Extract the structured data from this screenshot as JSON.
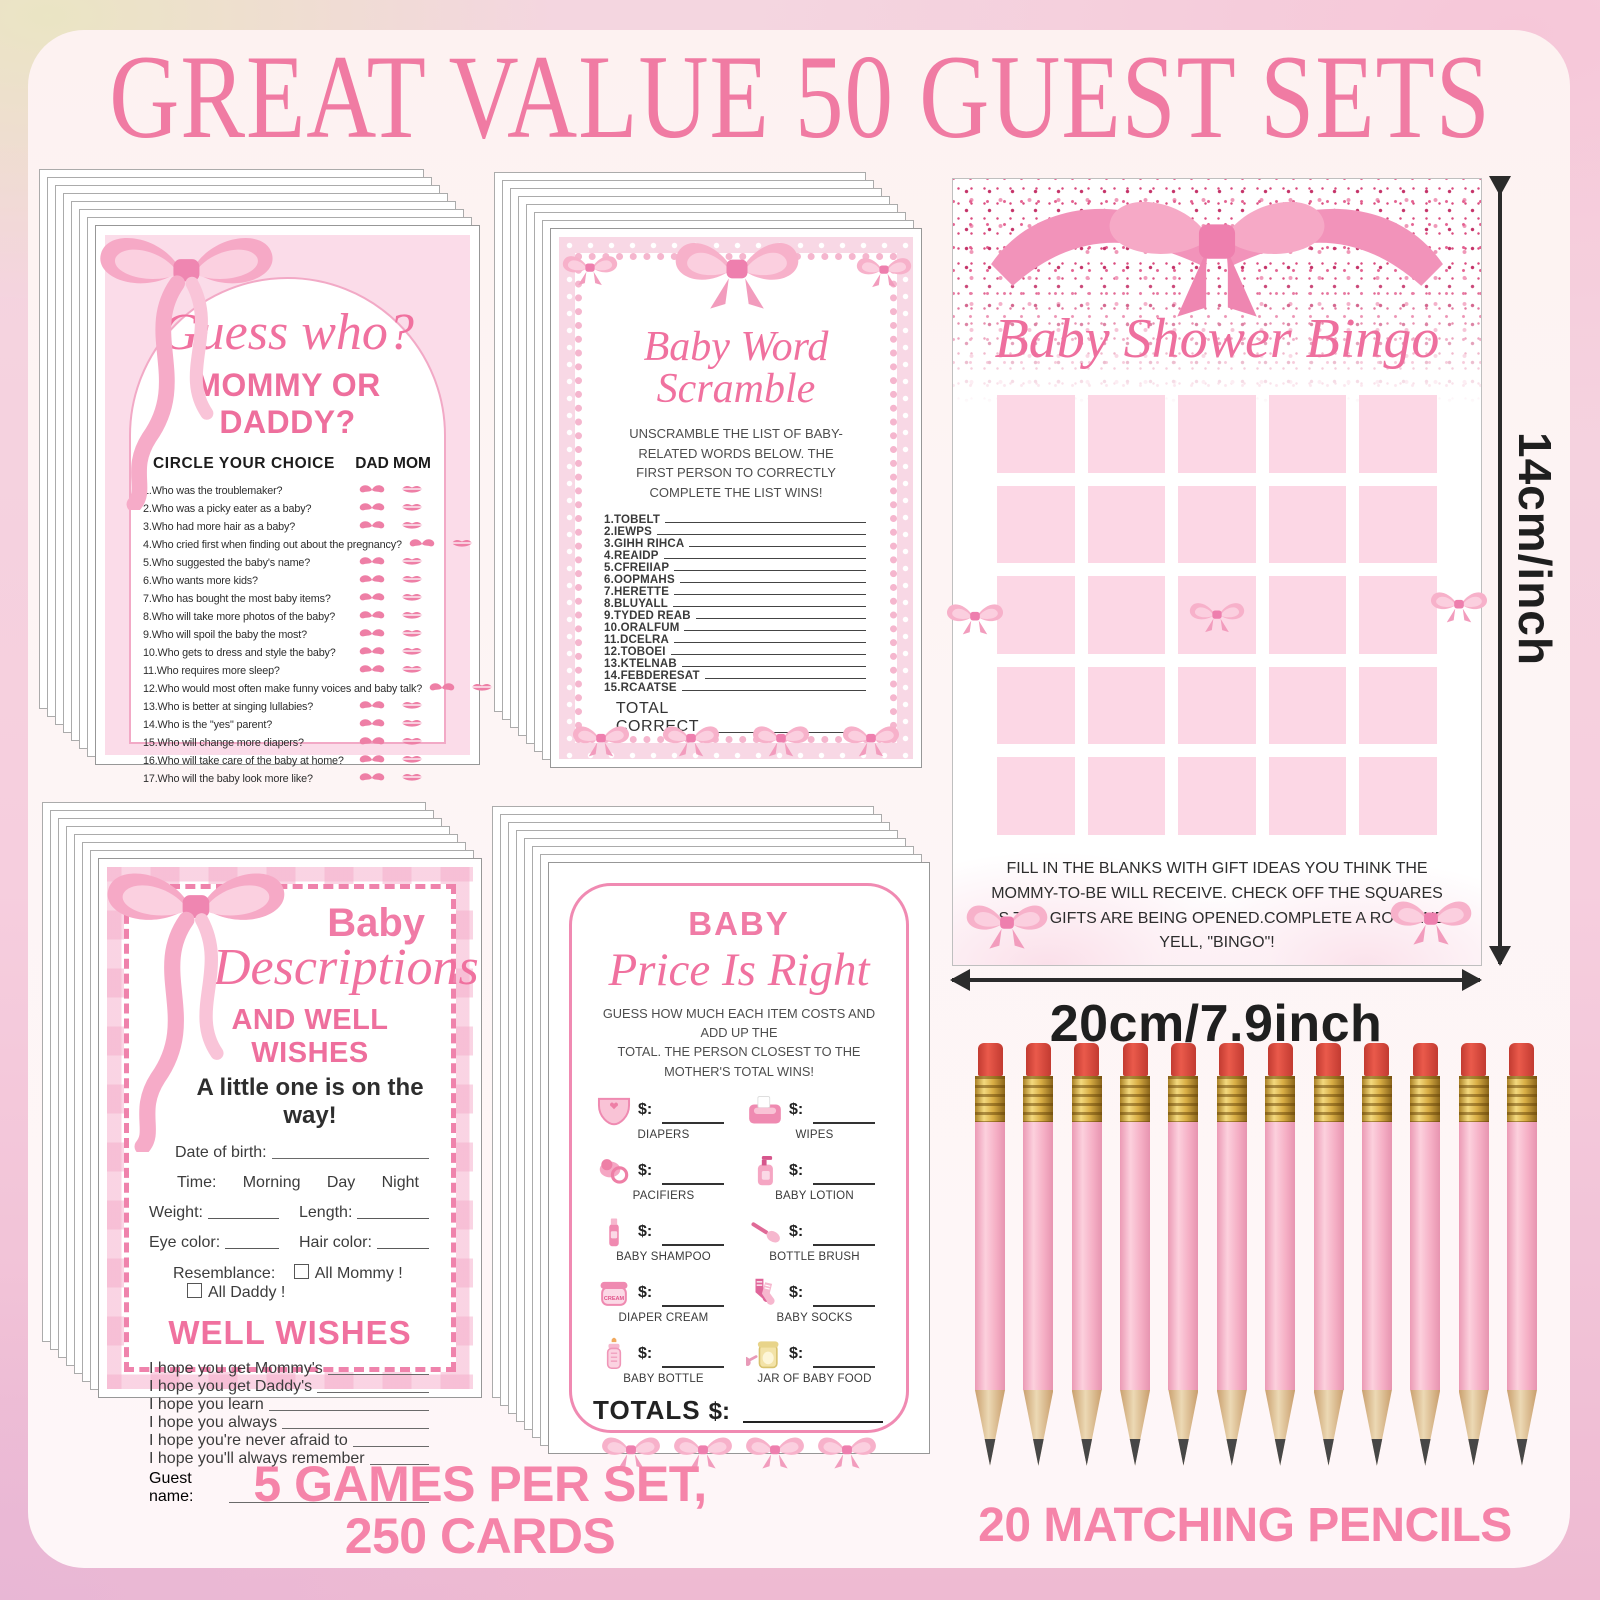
{
  "title": "GREAT VALUE 50 GUEST SETS",
  "colors": {
    "accent_pink": "#f07ba3",
    "card_pink": "#fbdce9",
    "text_dark": "#2e2e2e"
  },
  "dimensions": {
    "height_label": "14cm/inch",
    "width_label": "20cm/7.9inch"
  },
  "footer": {
    "left_line1": "5 GAMES PER SET,",
    "left_line2": "250 CARDS",
    "right": "20 MATCHING PENCILS"
  },
  "stacks": {
    "back_cards": 7
  },
  "pencils": {
    "count": 12
  },
  "guess_who": {
    "title_script": "Guess who?",
    "title_sub": "MOMMY OR DADDY?",
    "header_left": "CIRCLE YOUR CHOICE",
    "header_dad": "DAD",
    "header_mom": "MOM",
    "dad_icon": "mustache-icon",
    "mom_icon": "lips-icon",
    "questions": [
      "1.Who was the troublemaker?",
      "2.Who was a picky eater as a baby?",
      "3.Who had more hair as a baby?",
      "4.Who cried first when finding out about the pregnancy?",
      "5.Who suggested the baby's name?",
      "6.Who wants more kids?",
      "7.Who has bought the most baby items?",
      "8.Who will take more photos of the baby?",
      "9.Who will spoil the baby the most?",
      "10.Who gets to dress and style the baby?",
      "11.Who requires more sleep?",
      "12.Who would most often make funny voices and baby talk?",
      "13.Who is better at singing lullabies?",
      "14.Who is the \"yes\" parent?",
      "15.Who will change more diapers?",
      "16.Who will take care of the baby at home?",
      "17.Who will the baby look more like?"
    ]
  },
  "word_scramble": {
    "title": "Baby Word Scramble",
    "instructions_line1": "UNSCRAMBLE THE LIST OF BABY-RELATED WORDS BELOW. THE",
    "instructions_line2": "FIRST PERSON TO CORRECTLY COMPLETE THE LIST WINS!",
    "words": [
      "1.TOBELT",
      "2.IEWPS",
      "3.GIHH RIHCA",
      "4.REAIDP",
      "5.CFREIIAP",
      "6.OOPMAHS",
      "7.HERETTE",
      "8.BLUYALL",
      "9.TYDED REAB",
      "10.ORALFUM",
      "11.DCELRA",
      "12.TOBOEI",
      "13.KTELNAB",
      "14.FEBDERESAT",
      "15.RCAATSE"
    ],
    "total_label": "TOTAL CORRECT"
  },
  "bingo": {
    "title": "Baby Shower Bingo",
    "grid_rows": 5,
    "grid_cols": 5,
    "center_icon": "bow-icon",
    "instructions": "FILL IN THE BLANKS WITH GIFT IDEAS YOU THINK THE MOMMY-TO-BE WILL RECEIVE. CHECK OFF THE SQUARES AS THE GIFTS ARE BEING OPENED.COMPLETE A ROW AND YELL, \"BINGO\"!"
  },
  "descriptions": {
    "title_top": "Baby",
    "title_script": "Descriptions",
    "subtitle": "AND WELL WISHES",
    "tagline": "A little one is on the way!",
    "fields": {
      "date_label": "Date of birth:",
      "time_label": "Time:",
      "time_options": [
        "Morning",
        "Day",
        "Night"
      ],
      "weight_label": "Weight:",
      "length_label": "Length:",
      "eye_label": "Eye color:",
      "hair_label": "Hair color:",
      "resemblance_label": "Resemblance:",
      "option_mommy": "All Mommy !",
      "option_daddy": "All Daddy !"
    },
    "well_wishes_title": "WELL WISHES",
    "wishes": [
      "I hope you get Mommy's",
      "I hope you get Daddy's",
      "I hope you learn",
      "I hope you always",
      "I hope you're never afraid to",
      "I hope you'll always remember"
    ],
    "guest_label": "Guest name:"
  },
  "price_is_right": {
    "title_top": "BABY",
    "title_script": "Price Is Right",
    "instructions_line1": "GUESS HOW MUCH EACH ITEM COSTS AND ADD UP THE",
    "instructions_line2": "TOTAL. THE PERSON CLOSEST TO THE MOTHER'S TOTAL WINS!",
    "price_prefix": "$:",
    "items": [
      {
        "label": "DIAPERS",
        "icon": "diaper-icon"
      },
      {
        "label": "WIPES",
        "icon": "wipes-icon"
      },
      {
        "label": "PACIFIERS",
        "icon": "pacifier-icon"
      },
      {
        "label": "BABY LOTION",
        "icon": "lotion-icon"
      },
      {
        "label": "BABY SHAMPOO",
        "icon": "shampoo-icon"
      },
      {
        "label": "BOTTLE BRUSH",
        "icon": "bottle-brush-icon"
      },
      {
        "label": "DIAPER CREAM",
        "icon": "cream-jar-icon"
      },
      {
        "label": "BABY SOCKS",
        "icon": "socks-icon"
      },
      {
        "label": "BABY BOTTLE",
        "icon": "baby-bottle-icon"
      },
      {
        "label": "JAR OF BABY FOOD",
        "icon": "baby-food-jar-icon"
      }
    ],
    "totals_label": "TOTALS",
    "totals_prefix": "$:"
  }
}
